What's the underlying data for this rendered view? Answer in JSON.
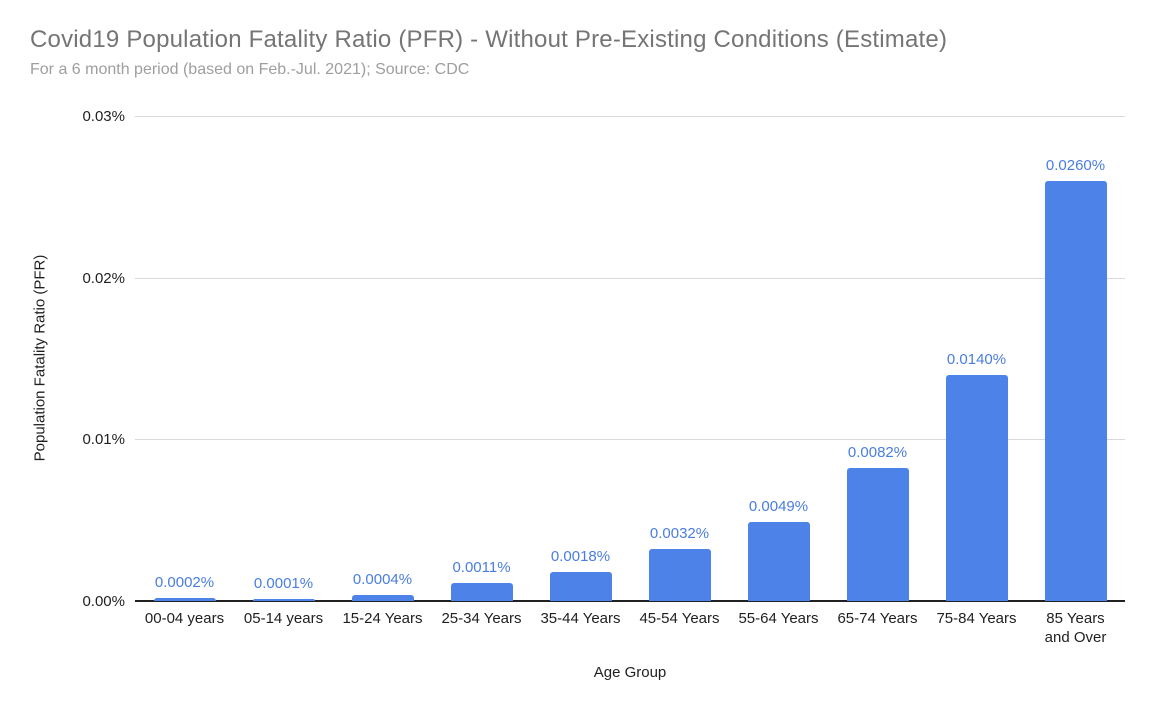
{
  "chart_data": {
    "type": "bar",
    "title": "Covid19 Population Fatality Ratio (PFR) - Without Pre-Existing Conditions (Estimate)",
    "subtitle": "For a 6 month period (based on Feb.-Jul. 2021); Source: CDC",
    "xlabel": "Age Group",
    "ylabel": "Population Fatality Ratio (PFR)",
    "categories": [
      "00-04 years",
      "05-14 years",
      "15-24 Years",
      "25-34 Years",
      "35-44 Years",
      "45-54 Years",
      "55-64 Years",
      "65-74 Years",
      "75-84 Years",
      "85 Years\nand Over"
    ],
    "values_percent": [
      0.0002,
      0.0001,
      0.0004,
      0.0011,
      0.0018,
      0.0032,
      0.0049,
      0.0082,
      0.014,
      0.026
    ],
    "data_labels": [
      "0.0002%",
      "0.0001%",
      "0.0004%",
      "0.0011%",
      "0.0018%",
      "0.0032%",
      "0.0049%",
      "0.0082%",
      "0.0140%",
      "0.0260%"
    ],
    "y_ticks": [
      {
        "value": 0,
        "label": "0.00%"
      },
      {
        "value": 0.01,
        "label": "0.01%"
      },
      {
        "value": 0.02,
        "label": "0.02%"
      },
      {
        "value": 0.03,
        "label": "0.03%"
      }
    ],
    "ylim": [
      0,
      0.03
    ],
    "grid": true,
    "legend": "none",
    "colors": {
      "bar": "#4d82e8",
      "data_label": "#4a7de0",
      "title": "#757575",
      "subtitle": "#9e9e9e",
      "axis_text": "#1f1f1f",
      "gridline": "#d9d9d9",
      "axis_line": "#212121",
      "background": "#ffffff"
    }
  }
}
